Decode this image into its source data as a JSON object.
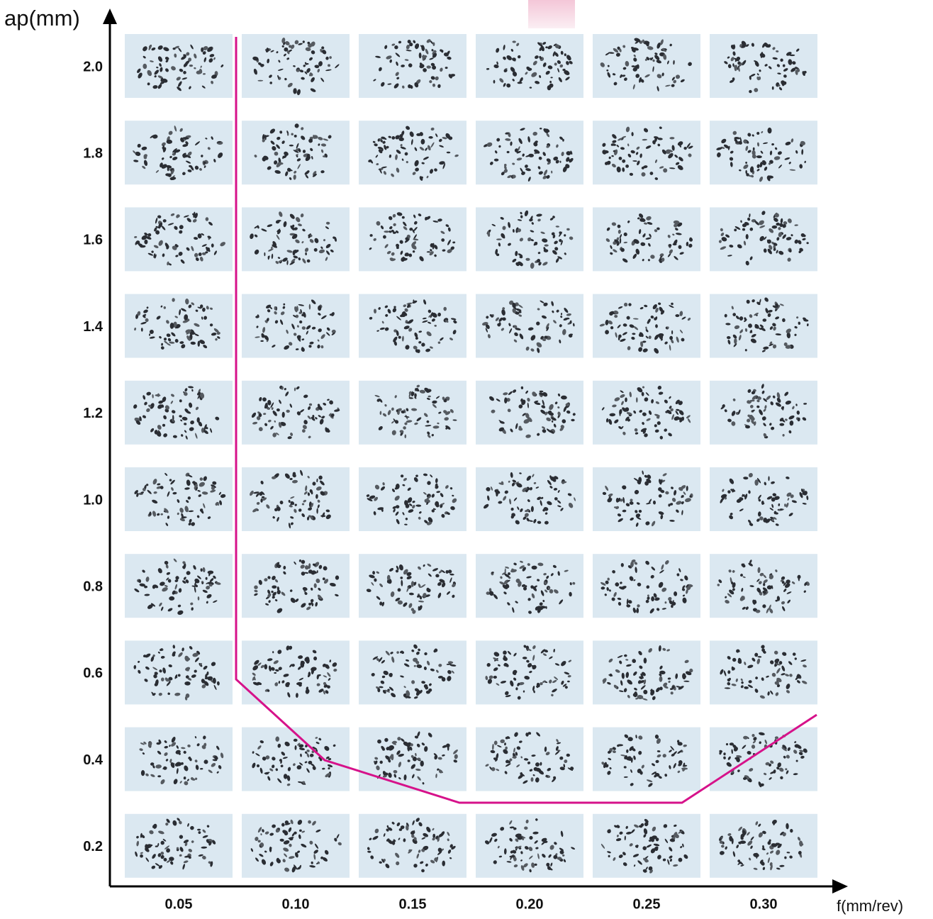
{
  "axes": {
    "y_label": "ap(mm)",
    "x_label": "f(mm/rev)",
    "y_ticks": [
      "2.0",
      "1.8",
      "1.6",
      "1.4",
      "1.2",
      "1.0",
      "0.8",
      "0.6",
      "0.4",
      "0.2"
    ],
    "x_ticks": [
      "0.05",
      "0.10",
      "0.15",
      "0.20",
      "0.25",
      "0.30"
    ]
  }
}
